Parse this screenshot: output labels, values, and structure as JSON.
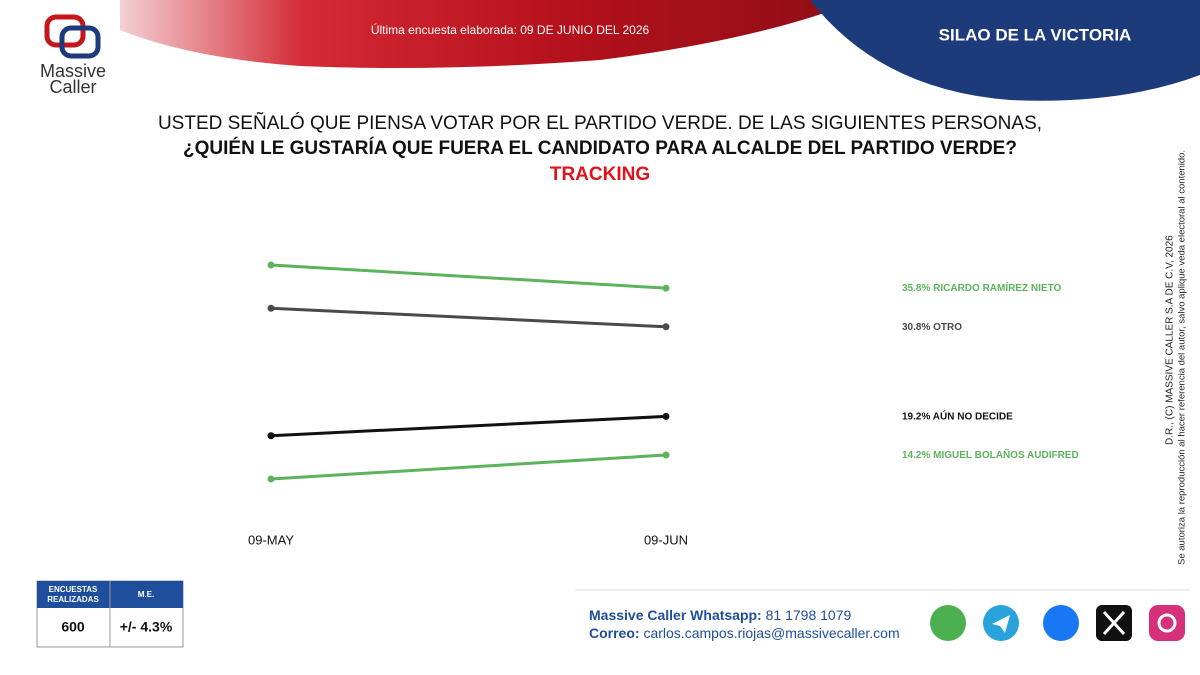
{
  "header": {
    "survey_date": "Última encuesta elaborada: 09 DE JUNIO DEL 2026",
    "location": "SILAO DE LA VICTORIA",
    "logo_line1": "Massive",
    "logo_line2": "Caller"
  },
  "chart_data": {
    "type": "line",
    "title": "USTED SEÑALÓ QUE PIENSA VOTAR POR EL PARTIDO VERDE. DE LAS SIGUIENTES PERSONAS,",
    "subtitle": "¿QUIÉN LE GUSTARÍA QUE FUERA EL CANDIDATO PARA ALCALDE DEL PARTIDO VERDE?",
    "annotation": "TRACKING",
    "categories": [
      "09-MAY",
      "09-JUN"
    ],
    "series": [
      {
        "name": "RICARDO RAMÍREZ NIETO",
        "color": "#5cb35c",
        "values": [
          38.8,
          35.8
        ],
        "value_labels": [
          null,
          "35.8%"
        ]
      },
      {
        "name": "OTRO",
        "color": "#4a4a4a",
        "values": [
          33.2,
          30.8
        ],
        "value_labels": [
          null,
          "30.8%"
        ]
      },
      {
        "name": "AÚN NO DECIDE",
        "color": "#111111",
        "values": [
          16.7,
          19.2
        ],
        "value_labels": [
          null,
          "19.2%"
        ]
      },
      {
        "name": "MIGUEL BOLAÑOS AUDIFRED",
        "color": "#5cb35c",
        "values": [
          11.1,
          14.2
        ],
        "value_labels": [
          null,
          "14.2%"
        ]
      }
    ]
  },
  "sample_table": {
    "headers": [
      "ENCUESTAS REALIZADAS",
      "M.E."
    ],
    "values": [
      "600",
      "+/- 4.3%"
    ]
  },
  "contact": {
    "whatsapp_label": "Massive Caller Whatsapp:",
    "whatsapp": "81 1798 1079",
    "email_label": "Correo:",
    "email": "carlos.campos.riojas@massivecaller.com"
  },
  "copyright": [
    "D.R., (C) MASSIVE CALLER S.A DE C.V, 2026",
    "Se autoriza la reproducción al hacer referencia del autor, salvo aplique veda electoral al contenido."
  ]
}
